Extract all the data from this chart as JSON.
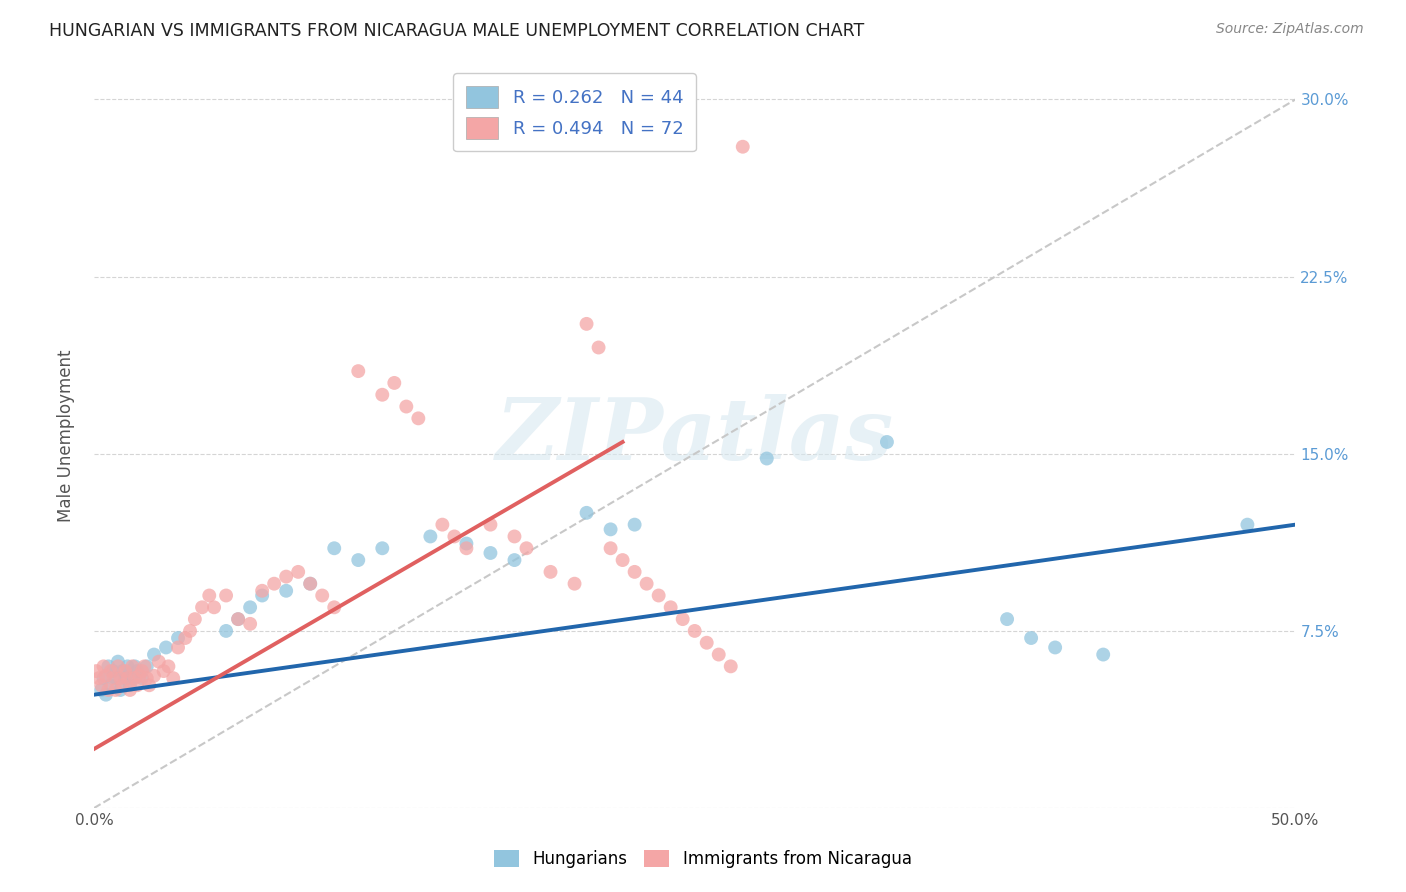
{
  "title": "HUNGARIAN VS IMMIGRANTS FROM NICARAGUA MALE UNEMPLOYMENT CORRELATION CHART",
  "source": "Source: ZipAtlas.com",
  "ylabel": "Male Unemployment",
  "xlim": [
    0.0,
    0.5
  ],
  "ylim": [
    0.0,
    0.315
  ],
  "xticks": [
    0.0,
    0.1,
    0.2,
    0.3,
    0.4,
    0.5
  ],
  "xticklabels": [
    "0.0%",
    "",
    "",
    "",
    "",
    "50.0%"
  ],
  "yticks": [
    0.0,
    0.075,
    0.15,
    0.225,
    0.3
  ],
  "yticklabels": [
    "",
    "7.5%",
    "15.0%",
    "22.5%",
    "30.0%"
  ],
  "blue_color": "#92c5de",
  "pink_color": "#f4a6a6",
  "blue_line_color": "#2166ac",
  "pink_line_color": "#e06060",
  "background_color": "#ffffff",
  "grid_color": "#d5d5d5",
  "blue_x": [
    0.003,
    0.004,
    0.005,
    0.006,
    0.007,
    0.008,
    0.009,
    0.01,
    0.011,
    0.012,
    0.013,
    0.014,
    0.015,
    0.016,
    0.017,
    0.018,
    0.02,
    0.022,
    0.025,
    0.03,
    0.035,
    0.055,
    0.06,
    0.065,
    0.07,
    0.08,
    0.09,
    0.1,
    0.11,
    0.12,
    0.14,
    0.155,
    0.165,
    0.175,
    0.205,
    0.215,
    0.225,
    0.28,
    0.33,
    0.38,
    0.39,
    0.4,
    0.42,
    0.48
  ],
  "blue_y": [
    0.05,
    0.055,
    0.048,
    0.06,
    0.052,
    0.058,
    0.055,
    0.062,
    0.05,
    0.058,
    0.055,
    0.06,
    0.052,
    0.055,
    0.06,
    0.058,
    0.055,
    0.06,
    0.065,
    0.068,
    0.072,
    0.075,
    0.08,
    0.085,
    0.09,
    0.092,
    0.095,
    0.11,
    0.105,
    0.11,
    0.115,
    0.112,
    0.108,
    0.105,
    0.125,
    0.118,
    0.12,
    0.148,
    0.155,
    0.08,
    0.072,
    0.068,
    0.065,
    0.12
  ],
  "pink_x": [
    0.001,
    0.002,
    0.003,
    0.004,
    0.005,
    0.006,
    0.007,
    0.008,
    0.009,
    0.01,
    0.011,
    0.012,
    0.013,
    0.014,
    0.015,
    0.016,
    0.017,
    0.018,
    0.019,
    0.02,
    0.021,
    0.022,
    0.023,
    0.025,
    0.027,
    0.029,
    0.031,
    0.033,
    0.035,
    0.038,
    0.04,
    0.042,
    0.045,
    0.048,
    0.05,
    0.055,
    0.06,
    0.065,
    0.07,
    0.075,
    0.08,
    0.085,
    0.09,
    0.095,
    0.1,
    0.11,
    0.12,
    0.125,
    0.13,
    0.135,
    0.145,
    0.15,
    0.155,
    0.165,
    0.175,
    0.18,
    0.19,
    0.2,
    0.205,
    0.21,
    0.215,
    0.22,
    0.225,
    0.23,
    0.235,
    0.24,
    0.245,
    0.25,
    0.255,
    0.26,
    0.265,
    0.27
  ],
  "pink_y": [
    0.058,
    0.055,
    0.052,
    0.06,
    0.056,
    0.05,
    0.058,
    0.055,
    0.05,
    0.06,
    0.055,
    0.052,
    0.058,
    0.055,
    0.05,
    0.06,
    0.055,
    0.052,
    0.056,
    0.058,
    0.06,
    0.055,
    0.052,
    0.056,
    0.062,
    0.058,
    0.06,
    0.055,
    0.068,
    0.072,
    0.075,
    0.08,
    0.085,
    0.09,
    0.085,
    0.09,
    0.08,
    0.078,
    0.092,
    0.095,
    0.098,
    0.1,
    0.095,
    0.09,
    0.085,
    0.185,
    0.175,
    0.18,
    0.17,
    0.165,
    0.12,
    0.115,
    0.11,
    0.12,
    0.115,
    0.11,
    0.1,
    0.095,
    0.205,
    0.195,
    0.11,
    0.105,
    0.1,
    0.095,
    0.09,
    0.085,
    0.08,
    0.075,
    0.07,
    0.065,
    0.06,
    0.28
  ]
}
